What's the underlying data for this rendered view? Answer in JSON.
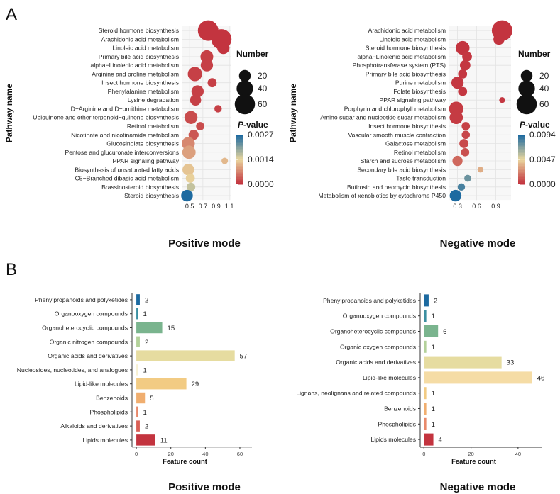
{
  "panel_labels": {
    "a": "A",
    "b": "B"
  },
  "legend_labels": {
    "number": "Number",
    "pvalue_italic": "P",
    "pvalue_suffix": "-value",
    "pathway_axis": "Pathway name",
    "feature_axis": "Feature count"
  },
  "colors": {
    "low": "#c3343f",
    "mid": "#e9d69e",
    "high": "#1d6aa0",
    "panel_bg": "#f7f7f7"
  },
  "chart_data": [
    {
      "id": "pos_pathway",
      "type": "scatter",
      "title": "Positive mode",
      "xlabel": "",
      "ylabel": "Pathway name",
      "xlim": [
        0.38,
        1.12
      ],
      "xticks": [
        0.5,
        0.7,
        0.9,
        1.1
      ],
      "xtick_labels": [
        "0.5",
        "0.7",
        "0.9",
        "1.1"
      ],
      "size_legend": {
        "title": "Number",
        "values": [
          20,
          40,
          60
        ]
      },
      "color_legend": {
        "title": "P-value",
        "min": 0,
        "max": 0.0027,
        "labels": [
          "0.0027",
          "0.0014",
          "0.0000"
        ]
      },
      "categories": [
        "Steroid hormone biosynthesis",
        "Arachidonic acid metabolism",
        "Linoleic acid metabolism",
        "Primary bile acid biosynthesis",
        "alpha−Linolenic acid metabolism",
        "Arginine and proline metabolism",
        "Insect hormone biosynthesis",
        "Phenylalanine metabolism",
        "Lysine degradation",
        "D−Arginine and D−ornithine metabolism",
        "Ubiquinone and other terpenoid−quinone biosynthesis",
        "Retinol metabolism",
        "Nicotinate and nicotinamide metabolism",
        "Glucosinolate biosynthesis",
        "Pentose and glucuronate interconversions",
        "PPAR signaling pathway",
        "Biosynthesis of unsaturated fatty acids",
        "C5−Branched dibasic acid metabolism",
        "Brassinosteroid biosynthesis",
        "Steroid biosynthesis"
      ],
      "x": [
        0.78,
        0.98,
        1.01,
        0.76,
        0.76,
        0.58,
        0.84,
        0.62,
        0.59,
        0.93,
        0.52,
        0.66,
        0.56,
        0.48,
        0.49,
        1.03,
        0.48,
        0.51,
        0.52,
        0.46
      ],
      "number": [
        62,
        60,
        22,
        24,
        22,
        30,
        12,
        22,
        18,
        8,
        25,
        10,
        15,
        25,
        26,
        6,
        20,
        12,
        11,
        20
      ],
      "pvalue": [
        0.0,
        0.0,
        0.0,
        0.0001,
        0.0001,
        0.0001,
        0.0001,
        0.0001,
        0.0001,
        0.0001,
        0.0002,
        0.0002,
        0.0003,
        0.0007,
        0.0009,
        0.0011,
        0.0012,
        0.0013,
        0.0016,
        0.0027
      ]
    },
    {
      "id": "neg_pathway",
      "type": "scatter",
      "title": "Negative mode",
      "xlabel": "",
      "ylabel": "Pathway name",
      "xlim": [
        0.16,
        1.14
      ],
      "xticks": [
        0.3,
        0.6,
        0.9
      ],
      "xtick_labels": [
        "0.3",
        "0.6",
        "0.9"
      ],
      "size_legend": {
        "title": "Number",
        "values": [
          20,
          40,
          60
        ]
      },
      "color_legend": {
        "title": "P-value",
        "min": 0,
        "max": 0.0094,
        "labels": [
          "0.0094",
          "0.0047",
          "0.0000"
        ]
      },
      "categories": [
        "Arachidonic acid metabolism",
        "Linoleic acid metabolism",
        "Steroid hormone biosynthesis",
        "alpha−Linolenic acid metabolism",
        "Phosphotransferase system (PTS)",
        "Primary bile acid biosynthesis",
        "Purine metabolism",
        "Folate biosynthesis",
        "PPAR signaling pathway",
        "Porphyrin and chlorophyll metabolism",
        "Amino sugar and nucleotide sugar metabolism",
        "Insect hormone biosynthesis",
        "Vascular smooth muscle contraction",
        "Galactose metabolism",
        "Retinol metabolism",
        "Starch and sucrose metabolism",
        "Secondary bile acid biosynthesis",
        "Taste transduction",
        "Butirosin and neomycin biosynthesis",
        "Metabolism of xenobiotics by cytochrome P450"
      ],
      "x": [
        1.0,
        0.95,
        0.38,
        0.45,
        0.42,
        0.38,
        0.3,
        0.38,
        1.0,
        0.28,
        0.28,
        0.43,
        0.43,
        0.4,
        0.42,
        0.3,
        0.66,
        0.46,
        0.36,
        0.27
      ],
      "number": [
        62,
        18,
        28,
        14,
        16,
        12,
        22,
        12,
        5,
        30,
        26,
        10,
        10,
        12,
        10,
        15,
        5,
        7,
        8,
        20
      ],
      "pvalue": [
        0.0,
        0.0,
        0.0,
        0.0001,
        0.0001,
        0.0001,
        0.0001,
        0.0001,
        0.0001,
        0.0002,
        0.0002,
        0.0004,
        0.0005,
        0.0006,
        0.0008,
        0.0015,
        0.0035,
        0.0076,
        0.0084,
        0.0094
      ]
    },
    {
      "id": "pos_bar",
      "type": "bar",
      "title": "Positive mode",
      "xlabel": "Feature count",
      "ylabel": "",
      "xlim": [
        -2.5,
        67
      ],
      "xticks": [
        0,
        20,
        40,
        60
      ],
      "xtick_labels": [
        "0",
        "20",
        "40",
        "60"
      ],
      "categories": [
        "Phenylpropanoids and polyketides",
        "Organooxygen compounds",
        "Organoheterocyclic compounds",
        "Organic nitrogen compounds",
        "Organic acids and derivatives",
        "Nucleosides, nucleotides, and analogues",
        "Lipid-like molecules",
        "Benzenoids",
        "Phospholipids",
        "Alkaloids and derivatives",
        "Lipids molecules"
      ],
      "values": [
        2,
        1,
        15,
        2,
        57,
        1,
        29,
        5,
        1,
        2,
        11
      ],
      "colors": [
        "#1d6aa0",
        "#3b8fa1",
        "#7ab48e",
        "#b3d19a",
        "#e6dca0",
        "#f8f1d2",
        "#f2cb83",
        "#f0ae6f",
        "#e8896a",
        "#d95f55",
        "#c3343f"
      ]
    },
    {
      "id": "neg_bar",
      "type": "bar",
      "title": "Negative mode",
      "xlabel": "Feature count",
      "ylabel": "",
      "xlim": [
        -1.6,
        50
      ],
      "xticks": [
        0,
        20,
        40
      ],
      "xtick_labels": [
        "0",
        "20",
        "40"
      ],
      "categories": [
        "Phenylpropanoids and polyketides",
        "Organooxygen compounds",
        "Organoheterocyclic compounds",
        "Organic oxygen compounds",
        "Organic acids and derivatives",
        "Lipid-like molecules",
        "Lignans, neolignans and related compounds",
        "Benzenoids",
        "Phospholipids",
        "Lipids molecules"
      ],
      "values": [
        2,
        1,
        6,
        1,
        33,
        46,
        1,
        1,
        1,
        4
      ],
      "colors": [
        "#1d6aa0",
        "#3b8fa1",
        "#7ab48e",
        "#b3d19a",
        "#e6dca0",
        "#f5dca5",
        "#f2cb83",
        "#f0ae6f",
        "#e8896a",
        "#c3343f"
      ]
    }
  ]
}
